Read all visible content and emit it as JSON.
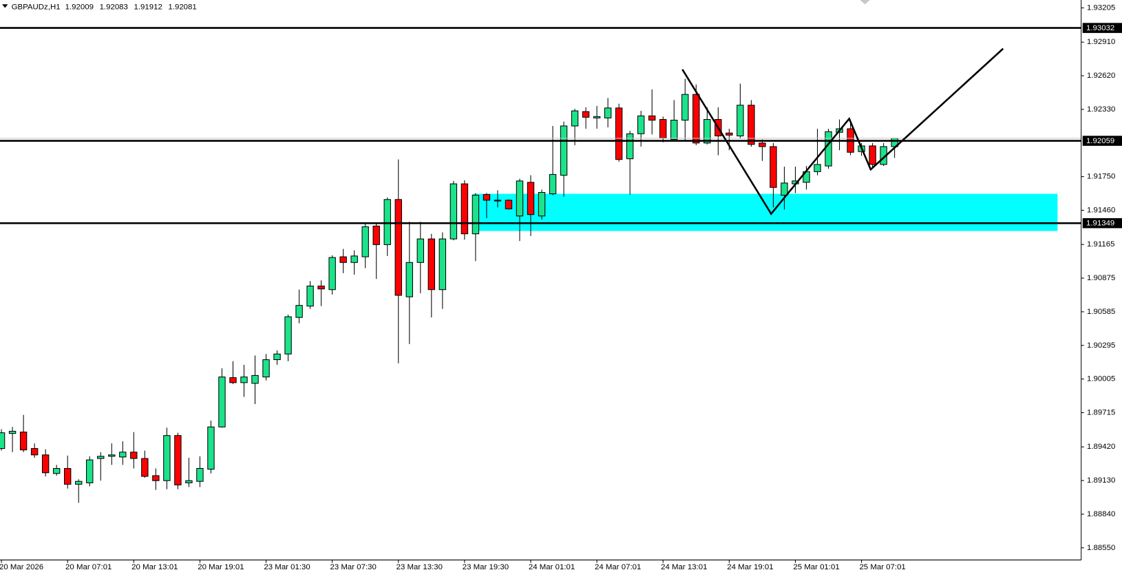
{
  "chart_data": {
    "type": "candlestick",
    "symbol": "GBPAUDz,H1",
    "categories": [
      "20 Mar 2026",
      null,
      null,
      null,
      null,
      null,
      "20 Mar 07:01",
      null,
      null,
      null,
      null,
      null,
      "20 Mar 13:01",
      null,
      null,
      null,
      null,
      null,
      "20 Mar 19:01",
      null,
      null,
      null,
      null,
      null,
      "23 Mar 01:30",
      null,
      null,
      null,
      null,
      null,
      "23 Mar 07:30",
      null,
      null,
      null,
      null,
      null,
      "23 Mar 13:30",
      null,
      null,
      null,
      null,
      null,
      "23 Mar 19:30",
      null,
      null,
      null,
      null,
      null,
      "24 Mar 01:01",
      null,
      null,
      null,
      null,
      null,
      "24 Mar 07:01",
      null,
      null,
      null,
      null,
      null,
      "24 Mar 13:01",
      null,
      null,
      null,
      null,
      null,
      "24 Mar 19:01",
      null,
      null,
      null,
      null,
      null,
      "25 Mar 01:01",
      null,
      null,
      null,
      null,
      null,
      "25 Mar 07:01",
      null,
      null,
      null
    ],
    "open": [
      1.89406,
      1.89536,
      1.89548,
      1.89406,
      1.89351,
      1.89191,
      1.89234,
      1.89098,
      1.8911,
      1.8932,
      1.89339,
      1.89333,
      1.89375,
      1.8932,
      1.89172,
      1.89129,
      1.89518,
      1.8911,
      1.89123,
      1.89228,
      1.89592,
      1.90017,
      1.89974,
      1.89968,
      1.90023,
      1.90172,
      1.90221,
      1.90536,
      1.90634,
      1.90807,
      1.90776,
      1.91059,
      1.9101,
      1.91059,
      1.91324,
      1.91164,
      1.91553,
      1.90714,
      1.9101,
      1.91213,
      1.90776,
      1.91213,
      1.91688,
      1.91257,
      1.91596,
      1.9154,
      1.91547,
      1.91411,
      1.91701,
      1.91411,
      1.91602,
      1.91762,
      1.92187,
      1.92311,
      1.92256,
      1.92256,
      1.92342,
      1.91904,
      1.9212,
      1.92274,
      1.92243,
      1.92071,
      1.92237,
      1.92459,
      1.9204,
      1.92243,
      1.92126,
      1.92101,
      1.92366,
      1.9204,
      1.92009,
      1.9159,
      1.91688,
      1.91701,
      1.91793,
      1.91842,
      1.92132,
      1.92163,
      1.91966,
      1.92015,
      1.91855,
      1.92009
    ],
    "high": [
      1.89573,
      1.89592,
      1.89696,
      1.8945,
      1.894,
      1.89265,
      1.89345,
      1.89141,
      1.89339,
      1.89375,
      1.8945,
      1.89468,
      1.89548,
      1.89388,
      1.89234,
      1.89586,
      1.89542,
      1.89326,
      1.89339,
      1.89647,
      1.90097,
      1.90159,
      1.90128,
      1.90208,
      1.90221,
      1.90252,
      1.9056,
      1.90776,
      1.9085,
      1.90856,
      1.91072,
      1.91127,
      1.91115,
      1.91343,
      1.91349,
      1.91571,
      1.91898,
      1.91361,
      1.91361,
      1.91257,
      1.91269,
      1.91713,
      1.91719,
      1.91608,
      1.91608,
      1.91633,
      1.91553,
      1.91732,
      1.91762,
      1.91639,
      1.92187,
      1.92225,
      1.92335,
      1.92348,
      1.9236,
      1.92428,
      1.92379,
      1.92145,
      1.92317,
      1.92502,
      1.92268,
      1.9241,
      1.92594,
      1.92545,
      1.92348,
      1.92348,
      1.92163,
      1.92552,
      1.9241,
      1.92071,
      1.9204,
      1.91836,
      1.91836,
      1.91842,
      1.92163,
      1.92163,
      1.92243,
      1.92243,
      1.9204,
      1.9204,
      1.9204,
      1.92083
    ],
    "low": [
      1.89388,
      1.89375,
      1.89375,
      1.89326,
      1.89166,
      1.89172,
      1.89061,
      1.88938,
      1.8908,
      1.89129,
      1.89265,
      1.89265,
      1.89234,
      1.89154,
      1.89049,
      1.89055,
      1.89055,
      1.89074,
      1.89074,
      1.89191,
      1.89586,
      1.89962,
      1.89851,
      1.89789,
      1.89993,
      1.90128,
      1.90159,
      1.90486,
      1.9061,
      1.90634,
      1.90733,
      1.90918,
      1.90905,
      1.90961,
      1.90868,
      1.91066,
      1.90141,
      1.90307,
      1.90745,
      1.90536,
      1.9061,
      1.91201,
      1.91207,
      1.91022,
      1.91392,
      1.91485,
      1.91466,
      1.91195,
      1.91238,
      1.9138,
      1.9159,
      1.91577,
      1.92021,
      1.92163,
      1.92163,
      1.92175,
      1.91879,
      1.91596,
      1.92009,
      1.92114,
      1.92046,
      1.92058,
      1.92058,
      1.92021,
      1.92028,
      1.91935,
      1.91978,
      1.92083,
      1.92009,
      1.91886,
      1.91485,
      1.91466,
      1.91608,
      1.91639,
      1.91762,
      1.91818,
      1.91978,
      1.91935,
      1.91929,
      1.91824,
      1.91842,
      1.91912
    ],
    "close": [
      1.89542,
      1.89555,
      1.89394,
      1.89351,
      1.89197,
      1.89234,
      1.89098,
      1.89123,
      1.89308,
      1.89339,
      1.89351,
      1.89375,
      1.8932,
      1.89166,
      1.89129,
      1.89518,
      1.89092,
      1.89129,
      1.89234,
      1.89592,
      1.90023,
      1.89974,
      1.90023,
      1.90036,
      1.90172,
      1.90221,
      1.90542,
      1.9064,
      1.90807,
      1.90782,
      1.91053,
      1.9101,
      1.91066,
      1.91318,
      1.91164,
      1.91553,
      1.90727,
      1.9101,
      1.91213,
      1.90776,
      1.91213,
      1.91688,
      1.91257,
      1.9159,
      1.91547,
      1.91547,
      1.91472,
      1.91713,
      1.91423,
      1.91614,
      1.91769,
      1.92187,
      1.92317,
      1.92262,
      1.92268,
      1.92342,
      1.91898,
      1.9212,
      1.92274,
      1.92237,
      1.92083,
      1.92237,
      1.92459,
      1.9204,
      1.92243,
      1.92101,
      1.92108,
      1.92366,
      1.92028,
      1.92009,
      1.91657,
      1.91695,
      1.91713,
      1.91793,
      1.91855,
      1.92138,
      1.92163,
      1.9196,
      1.92015,
      1.91855,
      1.92009,
      1.92081
    ],
    "up_color": "#1be38a",
    "down_color": "#ff0000",
    "ylim": [
      1.88445,
      1.93273
    ],
    "yticks": [
      1.93205,
      {
        "value": 1.9291,
        "label": "1.92910"
      },
      {
        "value": 1.9262,
        "label": "1.92620"
      },
      {
        "value": 1.9233,
        "label": "1.92330"
      },
      {
        "value": 1.9175,
        "label": "1.91750"
      },
      {
        "value": 1.9146,
        "label": "1.91460"
      },
      1.91165,
      1.90875,
      1.90585,
      1.90295,
      1.90005,
      1.89715,
      {
        "value": 1.8942,
        "label": "1.89420"
      },
      {
        "value": 1.8913,
        "label": "1.89130"
      },
      {
        "value": 1.8884,
        "label": "1.88840"
      },
      {
        "value": 1.8855,
        "label": "1.88550"
      }
    ],
    "hlines": [
      1.93032,
      1.92059,
      1.91349
    ],
    "grid": false
  }
}
